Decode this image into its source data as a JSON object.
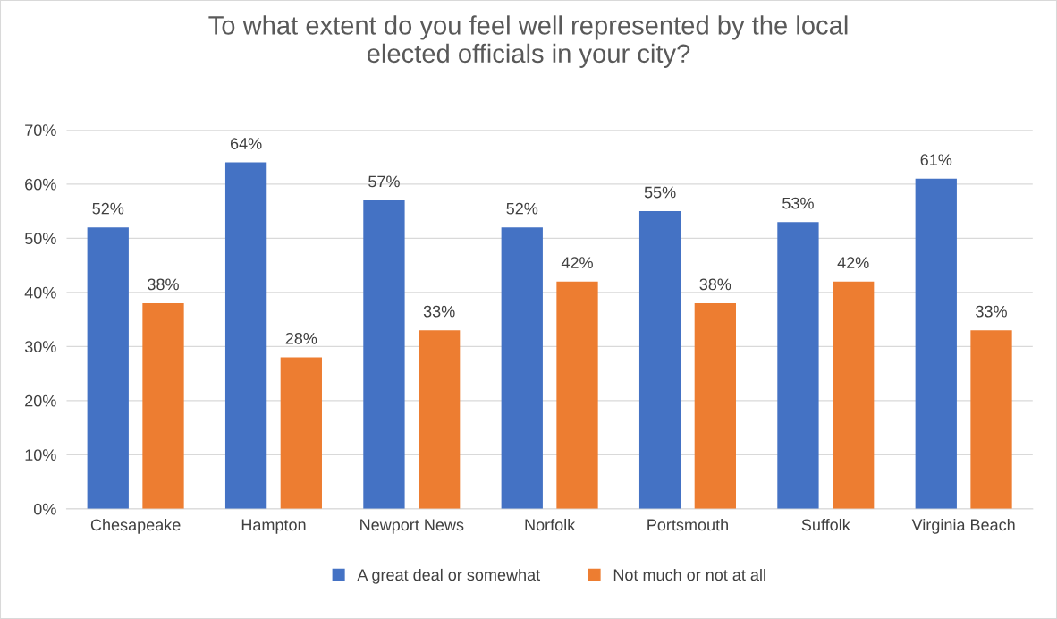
{
  "chart_data": {
    "type": "bar",
    "title": "To what extent do you feel well represented by the local\nelected officials in your city?",
    "categories": [
      "Chesapeake",
      "Hampton",
      "Newport News",
      "Norfolk",
      "Portsmouth",
      "Suffolk",
      "Virginia Beach"
    ],
    "series": [
      {
        "name": "A great deal or somewhat",
        "color": "#4472c4",
        "values": [
          52,
          64,
          57,
          52,
          55,
          53,
          61
        ],
        "value_labels": [
          "52%",
          "64%",
          "57%",
          "52%",
          "55%",
          "53%",
          "61%"
        ]
      },
      {
        "name": "Not much or not at all",
        "color": "#ed7d31",
        "values": [
          38,
          28,
          33,
          42,
          38,
          42,
          33
        ],
        "value_labels": [
          "38%",
          "28%",
          "33%",
          "42%",
          "38%",
          "42%",
          "33%"
        ]
      }
    ],
    "ylim": [
      0,
      70
    ],
    "yticks": [
      {
        "value": 0,
        "label": "0%"
      },
      {
        "value": 10,
        "label": "10%"
      },
      {
        "value": 20,
        "label": "20%"
      },
      {
        "value": 30,
        "label": "30%"
      },
      {
        "value": 40,
        "label": "40%"
      },
      {
        "value": 50,
        "label": "50%"
      },
      {
        "value": 60,
        "label": "60%"
      },
      {
        "value": 70,
        "label": "70%"
      }
    ],
    "grid": "y",
    "legend": "bottom"
  }
}
